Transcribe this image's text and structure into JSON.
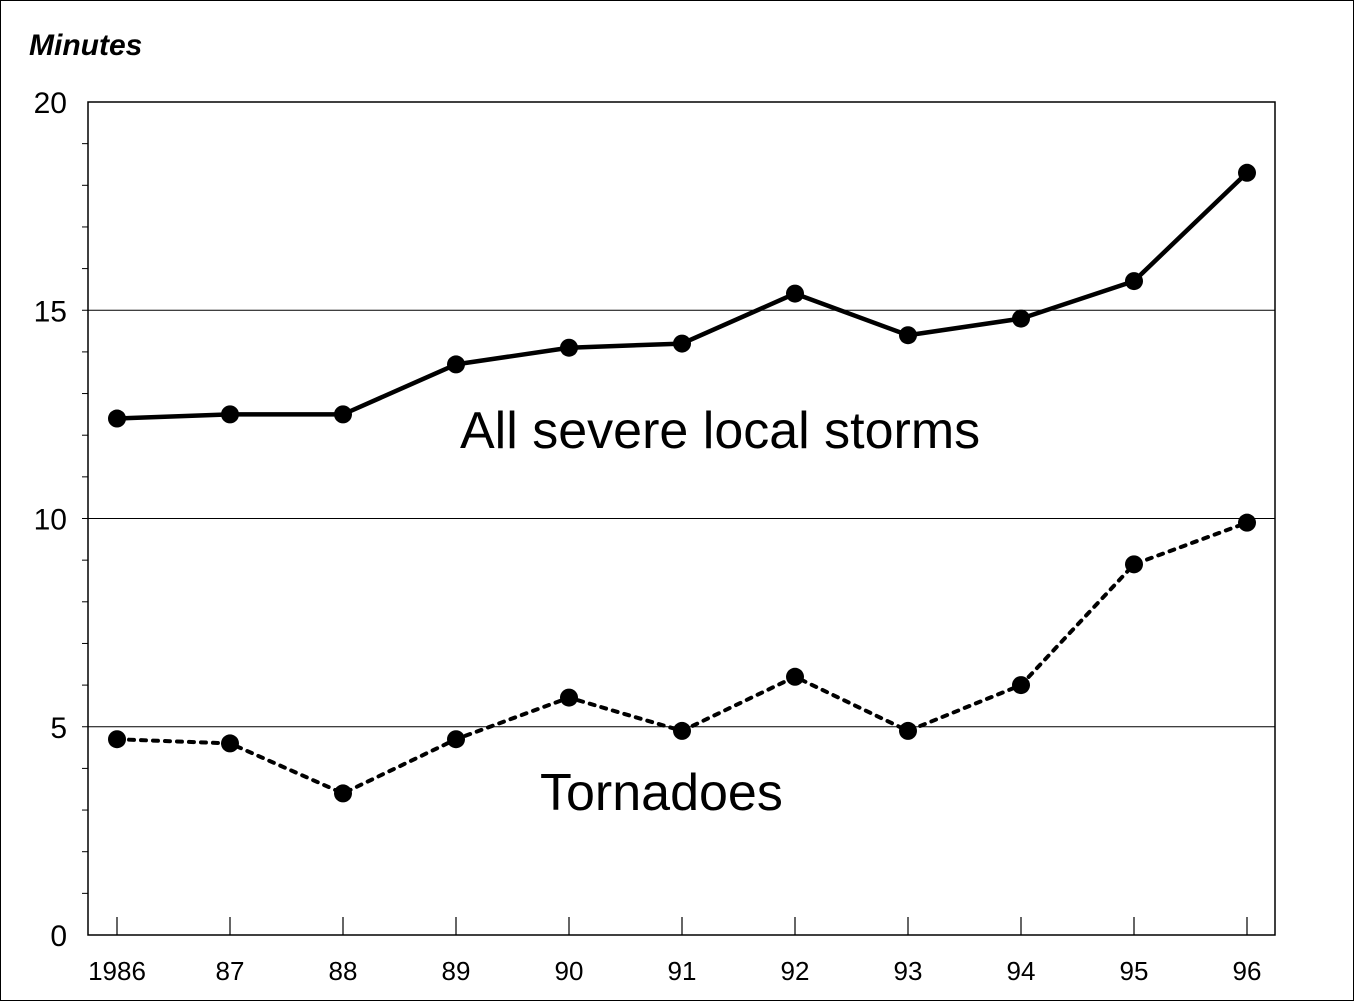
{
  "chart_data": {
    "type": "line",
    "title": "",
    "xlabel": "",
    "ylabel": "Minutes",
    "categories": [
      "1986",
      "87",
      "88",
      "89",
      "90",
      "91",
      "92",
      "93",
      "94",
      "95",
      "96"
    ],
    "ylim": [
      0,
      20
    ],
    "yticks": [
      "0",
      "5",
      "10",
      "15",
      "20"
    ],
    "grid": "horizontal at major ticks",
    "legend": "none; series labeled directly on the plot",
    "series": [
      {
        "name": "All severe local storms",
        "style": "solid",
        "color": "#000000",
        "values": [
          12.4,
          12.5,
          12.5,
          13.7,
          14.1,
          14.2,
          15.4,
          14.4,
          14.8,
          15.7,
          18.3
        ]
      },
      {
        "name": "Tornadoes",
        "style": "dotted",
        "color": "#000000",
        "values": [
          4.7,
          4.6,
          3.4,
          4.7,
          5.7,
          4.9,
          6.2,
          4.9,
          6.0,
          8.9,
          9.9
        ]
      }
    ]
  }
}
